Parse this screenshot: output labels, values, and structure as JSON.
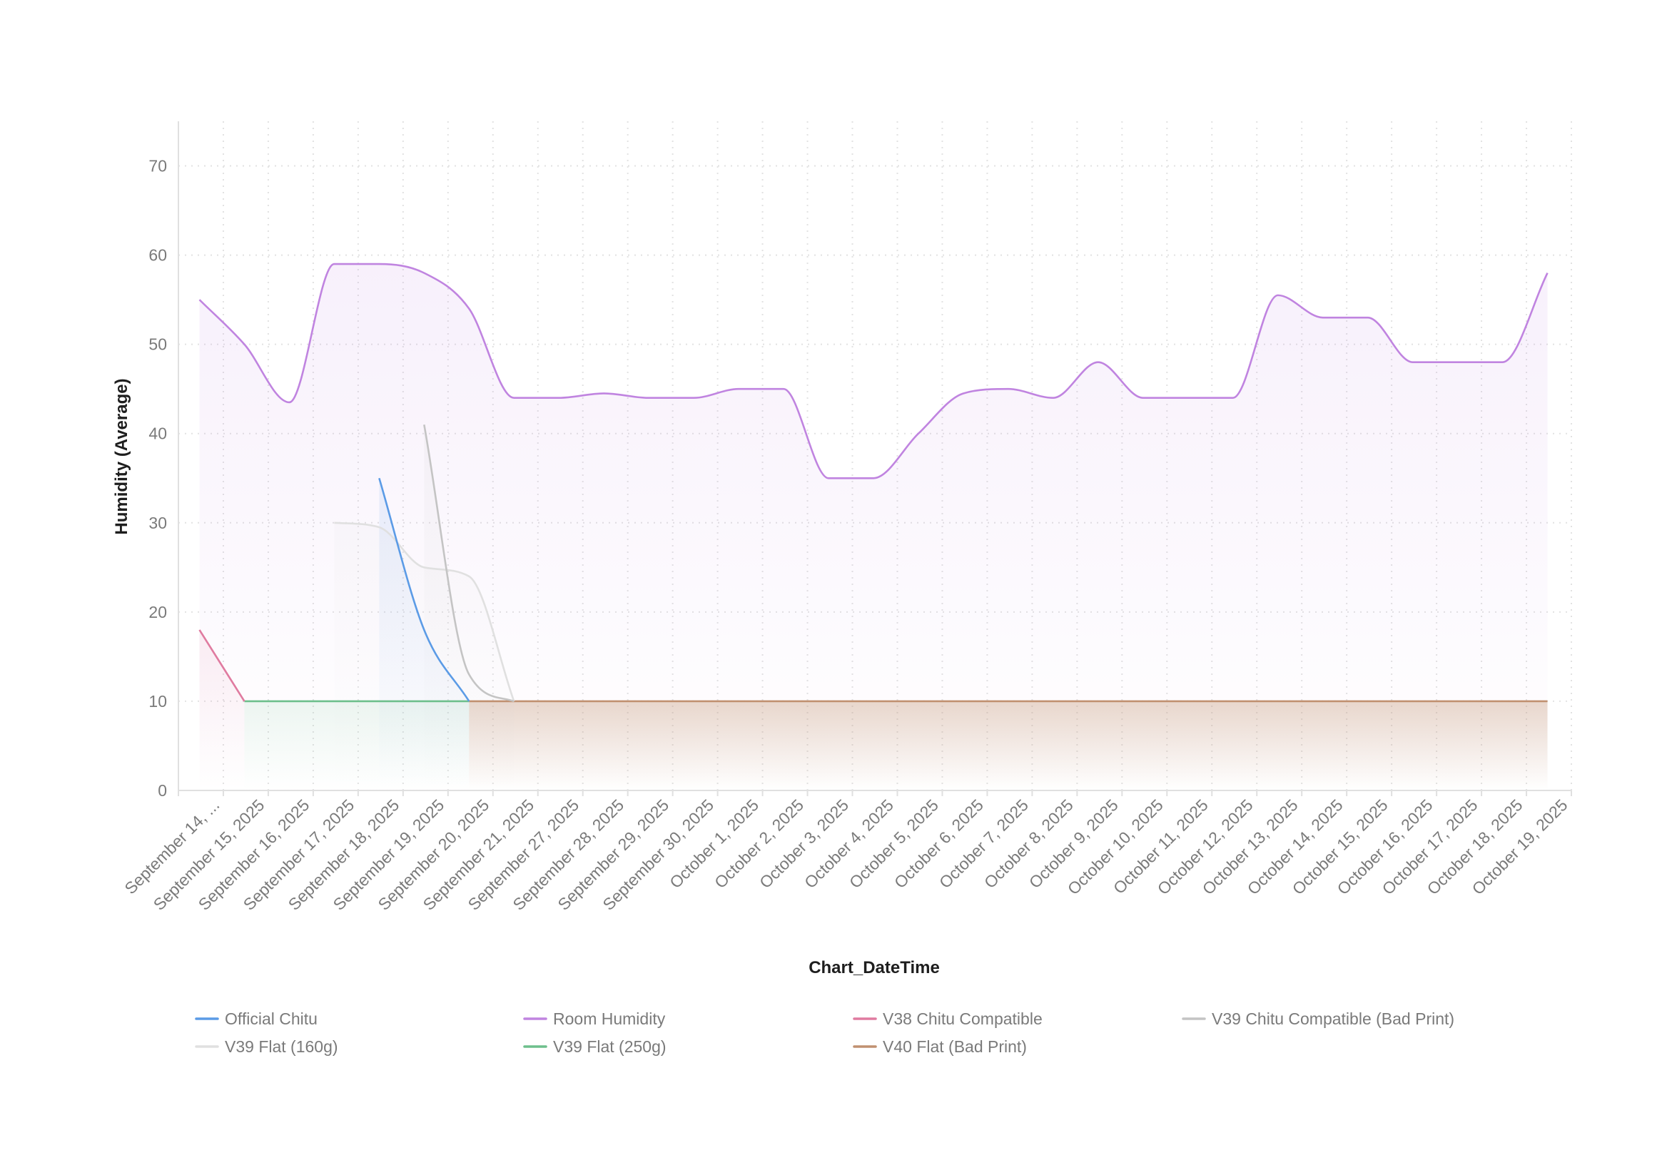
{
  "chart_data": {
    "type": "line",
    "title": "",
    "xlabel": "Chart_DateTime",
    "ylabel": "Humidity (Average)",
    "ylim": [
      0,
      75
    ],
    "yticks": [
      0,
      10,
      20,
      30,
      40,
      50,
      60,
      70
    ],
    "grid": true,
    "legend_position": "bottom",
    "categories": [
      "September 14, ...",
      "September 15, 2025",
      "September 16, 2025",
      "September 17, 2025",
      "September 18, 2025",
      "September 19, 2025",
      "September 20, 2025",
      "September 21, 2025",
      "September 27, 2025",
      "September 28, 2025",
      "September 29, 2025",
      "September 30, 2025",
      "October 1, 2025",
      "October 2, 2025",
      "October 3, 2025",
      "October 4, 2025",
      "October 5, 2025",
      "October 6, 2025",
      "October 7, 2025",
      "October 8, 2025",
      "October 9, 2025",
      "October 10, 2025",
      "October 11, 2025",
      "October 12, 2025",
      "October 13, 2025",
      "October 14, 2025",
      "October 15, 2025",
      "October 16, 2025",
      "October 17, 2025",
      "October 18, 2025",
      "October 19, 2025"
    ],
    "series": [
      {
        "name": "Official Chitu",
        "color": "#5b9be6",
        "values": [
          null,
          null,
          null,
          null,
          35,
          18,
          10,
          null,
          null,
          null,
          null,
          null,
          null,
          null,
          null,
          null,
          null,
          null,
          null,
          null,
          null,
          null,
          null,
          null,
          null,
          null,
          null,
          null,
          null,
          null,
          null
        ]
      },
      {
        "name": "Room Humidity",
        "color": "#c084e0",
        "values": [
          55,
          50,
          43.5,
          59,
          59,
          58,
          54,
          44,
          44,
          44.5,
          44,
          44,
          45,
          45,
          35,
          35,
          40,
          44.5,
          45,
          44,
          48,
          44,
          44,
          44,
          55.5,
          53,
          53,
          48,
          48,
          48,
          58
        ]
      },
      {
        "name": "V38 Chitu Compatible",
        "color": "#e07ba0",
        "values": [
          18,
          10,
          null,
          null,
          null,
          null,
          null,
          null,
          null,
          null,
          null,
          null,
          null,
          null,
          null,
          null,
          null,
          null,
          null,
          null,
          null,
          null,
          null,
          null,
          null,
          null,
          null,
          null,
          null,
          null,
          null
        ]
      },
      {
        "name": "V39 Chitu Compatible (Bad Print)",
        "color": "#c4c4c4",
        "values": [
          null,
          null,
          null,
          null,
          null,
          41,
          13,
          10,
          null,
          null,
          null,
          null,
          null,
          null,
          null,
          null,
          null,
          null,
          null,
          null,
          null,
          null,
          null,
          null,
          null,
          null,
          null,
          null,
          null,
          null,
          null
        ]
      },
      {
        "name": "V39 Flat (160g)",
        "color": "#e0e0e0",
        "values": [
          null,
          null,
          null,
          30,
          29.5,
          25,
          24,
          10,
          null,
          null,
          null,
          null,
          null,
          null,
          null,
          null,
          null,
          null,
          null,
          null,
          null,
          null,
          null,
          null,
          null,
          null,
          null,
          null,
          null,
          null,
          null
        ]
      },
      {
        "name": "V39 Flat (250g)",
        "color": "#6dbf8c",
        "values": [
          null,
          10,
          10,
          10,
          10,
          10,
          10,
          null,
          null,
          null,
          null,
          null,
          null,
          null,
          null,
          null,
          null,
          null,
          null,
          null,
          null,
          null,
          null,
          null,
          null,
          null,
          null,
          null,
          null,
          null,
          null
        ]
      },
      {
        "name": "V40 Flat (Bad Print)",
        "color": "#c09070",
        "values": [
          null,
          null,
          null,
          null,
          null,
          null,
          10,
          10,
          10,
          10,
          10,
          10,
          10,
          10,
          10,
          10,
          10,
          10,
          10,
          10,
          10,
          10,
          10,
          10,
          10,
          10,
          10,
          10,
          10,
          10,
          10
        ]
      }
    ]
  }
}
